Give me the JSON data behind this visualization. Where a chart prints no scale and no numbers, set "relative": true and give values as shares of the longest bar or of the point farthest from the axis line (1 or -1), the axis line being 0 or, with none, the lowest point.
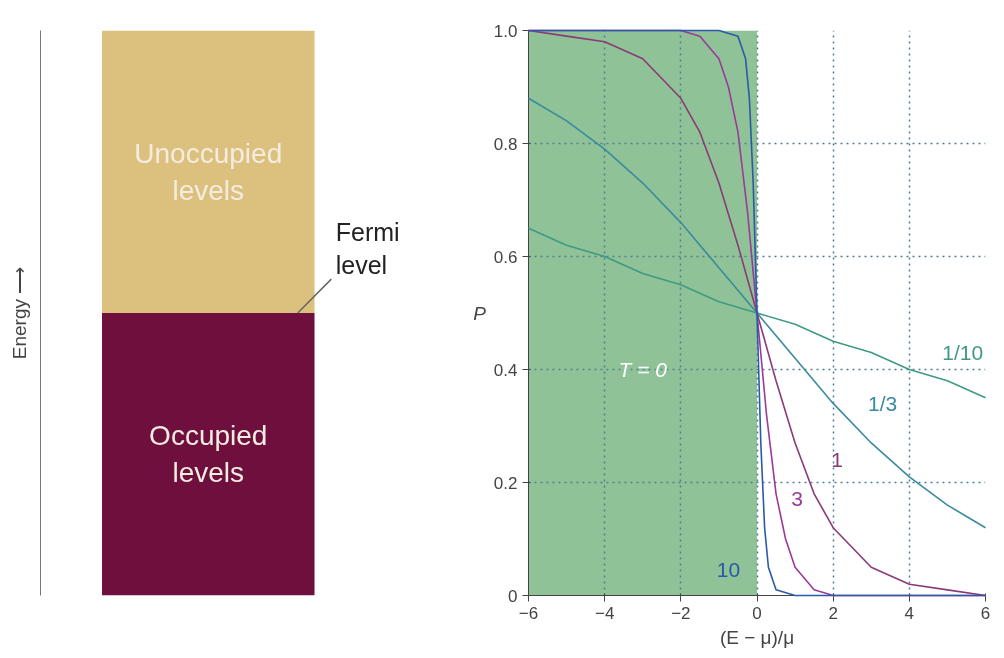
{
  "chart_data": [
    {
      "type": "bar",
      "stacked": true,
      "relative": true,
      "categories": [
        null
      ],
      "ylabel": "Energy ⟶",
      "series": [
        {
          "name": "Occupied levels",
          "color": "#6e0f3e",
          "values": [
            0.5
          ]
        },
        {
          "name": "Unoccupied levels",
          "color": "#dcc07e",
          "values": [
            0.5
          ]
        }
      ],
      "annotations": [
        "Fermi level"
      ]
    },
    {
      "type": "line",
      "xlabel": "(E − μ)/μ",
      "ylabel": "P",
      "grid": true,
      "xlim": [
        -6,
        6
      ],
      "ylim": [
        0,
        1
      ],
      "xticks": [
        {
          "value": -6,
          "label": "−6"
        },
        {
          "value": -4,
          "label": "−4"
        },
        {
          "value": -2,
          "label": "−2"
        },
        0,
        2,
        4,
        6
      ],
      "yticks": [
        0,
        0.2,
        0.4,
        0.6,
        0.8,
        {
          "value": 1,
          "label": "1.0"
        }
      ],
      "series": [
        {
          "name": "T = 0",
          "type": "area",
          "color": "#5fa96b",
          "x": [
            -6,
            0
          ],
          "values": [
            1,
            1
          ]
        },
        {
          "name": "1/10",
          "color": "#3f9a84",
          "x": [
            -6,
            -5,
            -4,
            -3,
            -2,
            -1,
            0,
            1,
            2,
            3,
            4,
            5,
            6
          ],
          "values": [
            0.65,
            0.62,
            0.6,
            0.57,
            0.55,
            0.52,
            0.5,
            0.48,
            0.45,
            0.43,
            0.4,
            0.38,
            0.35
          ]
        },
        {
          "name": "1/3",
          "color": "#3a8aa0",
          "x": [
            -6,
            -5,
            -4,
            -3,
            -2,
            -1,
            0,
            1,
            2,
            3,
            4,
            5,
            6
          ],
          "values": [
            0.88,
            0.84,
            0.79,
            0.73,
            0.66,
            0.58,
            0.5,
            0.42,
            0.34,
            0.27,
            0.21,
            0.16,
            0.12
          ]
        },
        {
          "name": "1",
          "color": "#8a3a78",
          "x": [
            -6,
            -5,
            -4,
            -3,
            -2,
            -1.5,
            -1,
            -0.5,
            0,
            0.5,
            1,
            1.5,
            2,
            3,
            4,
            5,
            6
          ],
          "values": [
            1.0,
            0.99,
            0.98,
            0.95,
            0.88,
            0.82,
            0.73,
            0.62,
            0.5,
            0.38,
            0.27,
            0.18,
            0.12,
            0.05,
            0.02,
            0.01,
            0.0
          ]
        },
        {
          "name": "3",
          "color": "#9a3a9a",
          "x": [
            -6,
            -4,
            -2,
            -1.5,
            -1,
            -0.75,
            -0.5,
            -0.25,
            0,
            0.25,
            0.5,
            0.75,
            1,
            1.5,
            2,
            4,
            6
          ],
          "values": [
            1.0,
            1.0,
            1.0,
            0.99,
            0.95,
            0.9,
            0.82,
            0.68,
            0.5,
            0.32,
            0.18,
            0.1,
            0.05,
            0.01,
            0.0,
            0.0,
            0.0
          ]
        },
        {
          "name": "10",
          "color": "#2a5aa8",
          "x": [
            -6,
            -1,
            -0.5,
            -0.3,
            -0.2,
            -0.1,
            0,
            0.1,
            0.2,
            0.3,
            0.5,
            1,
            6
          ],
          "values": [
            1.0,
            1.0,
            0.99,
            0.95,
            0.88,
            0.73,
            0.5,
            0.27,
            0.12,
            0.05,
            0.01,
            0.0,
            0.0
          ]
        }
      ]
    }
  ]
}
